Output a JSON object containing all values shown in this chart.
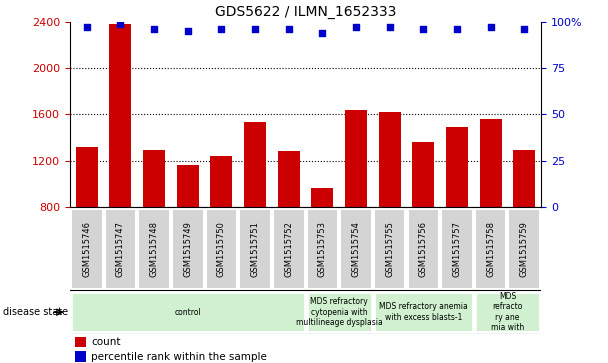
{
  "title": "GDS5622 / ILMN_1652333",
  "samples": [
    "GSM1515746",
    "GSM1515747",
    "GSM1515748",
    "GSM1515749",
    "GSM1515750",
    "GSM1515751",
    "GSM1515752",
    "GSM1515753",
    "GSM1515754",
    "GSM1515755",
    "GSM1515756",
    "GSM1515757",
    "GSM1515758",
    "GSM1515759"
  ],
  "counts": [
    1320,
    2380,
    1290,
    1160,
    1240,
    1530,
    1280,
    960,
    1640,
    1620,
    1360,
    1490,
    1560,
    1290
  ],
  "percentile_ranks": [
    97,
    99,
    96,
    95,
    96,
    96,
    96,
    94,
    97,
    97,
    96,
    96,
    97,
    96
  ],
  "bar_color": "#cc0000",
  "dot_color": "#0000cc",
  "ylim_left": [
    800,
    2400
  ],
  "ylim_right": [
    0,
    100
  ],
  "yticks_left": [
    800,
    1200,
    1600,
    2000,
    2400
  ],
  "yticks_right": [
    0,
    25,
    50,
    75,
    100
  ],
  "yticklabels_right": [
    "0",
    "25",
    "50",
    "75",
    "100%"
  ],
  "grid_values": [
    1200,
    1600,
    2000
  ],
  "disease_states": [
    {
      "label": "control",
      "start": 0,
      "end": 7
    },
    {
      "label": "MDS refractory\ncytopenia with\nmultilineage dysplasia",
      "start": 7,
      "end": 9
    },
    {
      "label": "MDS refractory anemia\nwith excess blasts-1",
      "start": 9,
      "end": 12
    },
    {
      "label": "MDS\nrefracto\nry ane\nmia with",
      "start": 12,
      "end": 14
    }
  ],
  "disease_state_label": "disease state",
  "legend_count_label": "count",
  "legend_percentile_label": "percentile rank within the sample",
  "sample_bg_color": "#d4d4d4",
  "disease_bg_color": "#d0f0d0"
}
